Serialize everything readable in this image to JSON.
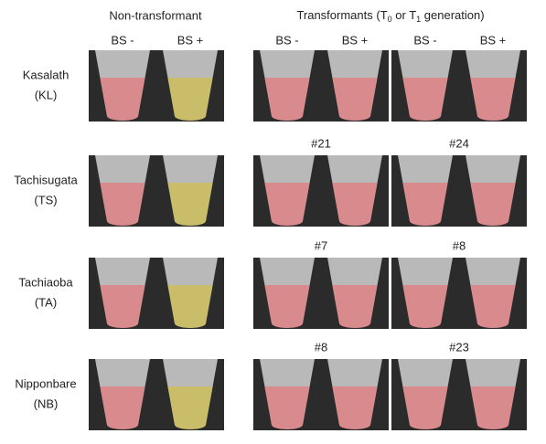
{
  "headers": {
    "non_transformant": "Non-transformant",
    "transformants": [
      "Transformants (T",
      "0",
      " or T",
      "1",
      " generation)"
    ]
  },
  "treatment_labels": [
    "BS -",
    "BS +",
    "BS -",
    "BS +",
    "BS -",
    "BS +"
  ],
  "rows": [
    {
      "name": "Kasalath",
      "abbr": "(KL)"
    },
    {
      "name": "Tachisugata",
      "abbr": "(TS)",
      "lines": [
        "#21",
        "#24"
      ]
    },
    {
      "name": "Tachiaoba",
      "abbr": "(TA)",
      "lines": [
        "#7",
        "#8"
      ]
    },
    {
      "name": "Nipponbare",
      "abbr": "(NB)",
      "lines": [
        "#8",
        "#23"
      ]
    }
  ]
}
